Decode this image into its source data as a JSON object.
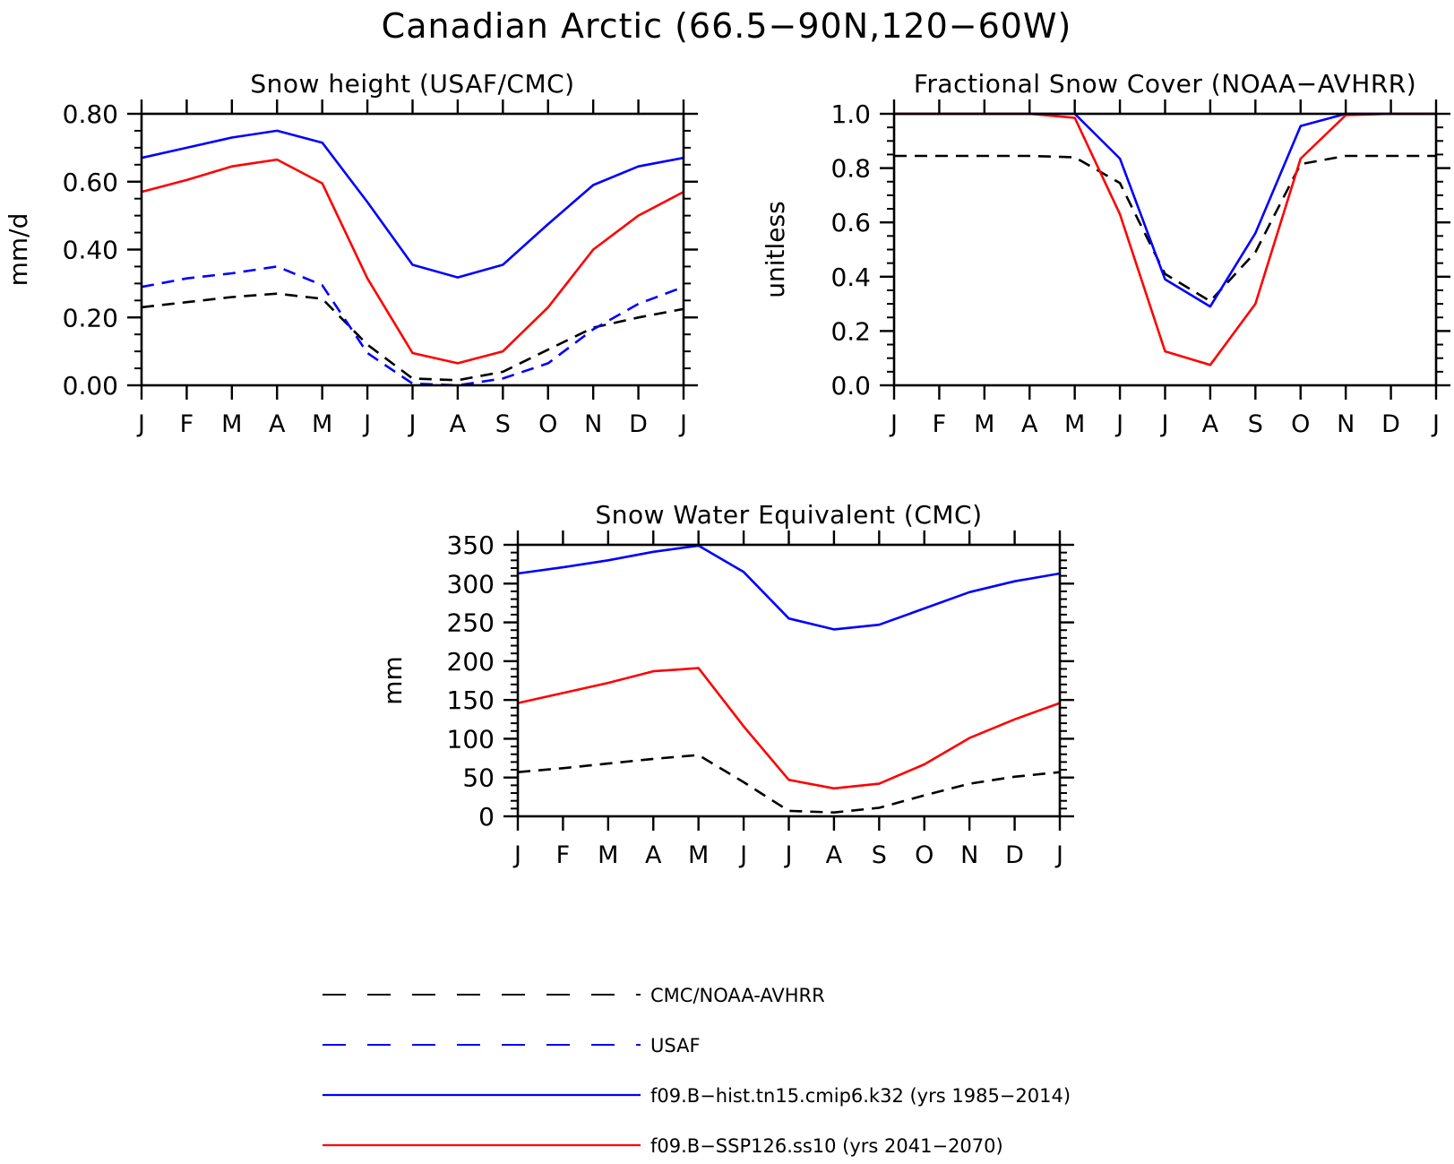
{
  "figure_title": "Canadian Arctic (66.5−90N,120−60W)",
  "months": [
    "J",
    "F",
    "M",
    "A",
    "M",
    "J",
    "J",
    "A",
    "S",
    "O",
    "N",
    "D",
    "J"
  ],
  "legend": [
    {
      "label": "CMC/NOAA-AVHRR",
      "color": "#000000",
      "dashed": true
    },
    {
      "label": "USAF",
      "color": "#0000ff",
      "dashed": true
    },
    {
      "label": "f09.B−hist.tn15.cmip6.k32 (yrs 1985−2014)",
      "color": "#0000ff",
      "dashed": false
    },
    {
      "label": "f09.B−SSP126.ss10 (yrs 2041−2070)",
      "color": "#ff0000",
      "dashed": false
    }
  ],
  "chart_data": [
    {
      "id": "snow-height",
      "type": "line",
      "title": "Snow height (USAF/CMC)",
      "ylabel": "mm/d",
      "ylim": [
        0,
        0.8
      ],
      "yticks": [
        "0.00",
        "0.20",
        "0.40",
        "0.60",
        "0.80"
      ],
      "x": [
        "J",
        "F",
        "M",
        "A",
        "M",
        "J",
        "J",
        "A",
        "S",
        "O",
        "N",
        "D",
        "J"
      ],
      "series": [
        {
          "name": "CMC/NOAA-AVHRR",
          "color": "#000000",
          "dashed": true,
          "values": [
            0.23,
            0.245,
            0.26,
            0.27,
            0.255,
            0.12,
            0.02,
            0.015,
            0.04,
            0.105,
            0.17,
            0.2,
            0.225
          ]
        },
        {
          "name": "USAF",
          "color": "#0000ff",
          "dashed": true,
          "values": [
            0.29,
            0.315,
            0.33,
            0.35,
            0.295,
            0.095,
            0.005,
            0.0,
            0.02,
            0.065,
            0.165,
            0.24,
            0.29
          ]
        },
        {
          "name": "f09.B−hist.tn15.cmip6.k32 (yrs 1985−2014)",
          "color": "#0000ff",
          "dashed": false,
          "values": [
            0.67,
            0.7,
            0.73,
            0.75,
            0.715,
            0.54,
            0.355,
            0.318,
            0.355,
            0.475,
            0.59,
            0.645,
            0.67
          ]
        },
        {
          "name": "f09.B−SSP126.ss10 (yrs 2041−2070)",
          "color": "#ff0000",
          "dashed": false,
          "values": [
            0.57,
            0.605,
            0.645,
            0.665,
            0.595,
            0.315,
            0.095,
            0.065,
            0.1,
            0.23,
            0.4,
            0.5,
            0.57
          ]
        }
      ]
    },
    {
      "id": "snow-cover",
      "type": "line",
      "title": "Fractional Snow Cover (NOAA−AVHRR)",
      "ylabel": "unitless",
      "ylim": [
        0,
        1.0
      ],
      "yticks": [
        "0.0",
        "0.2",
        "0.4",
        "0.6",
        "0.8",
        "1.0"
      ],
      "x": [
        "J",
        "F",
        "M",
        "A",
        "M",
        "J",
        "J",
        "A",
        "S",
        "O",
        "N",
        "D",
        "J"
      ],
      "series": [
        {
          "name": "CMC/NOAA-AVHRR",
          "color": "#000000",
          "dashed": true,
          "values": [
            0.845,
            0.845,
            0.845,
            0.845,
            0.84,
            0.745,
            0.41,
            0.31,
            0.49,
            0.815,
            0.845,
            0.845,
            0.845
          ]
        },
        {
          "name": "f09.B−hist.tn15.cmip6.k32 (yrs 1985−2014)",
          "color": "#0000ff",
          "dashed": false,
          "values": [
            1.0,
            1.0,
            1.0,
            1.0,
            1.0,
            0.835,
            0.39,
            0.29,
            0.56,
            0.955,
            1.0,
            1.0,
            1.0
          ]
        },
        {
          "name": "f09.B−SSP126.ss10 (yrs 2041−2070)",
          "color": "#ff0000",
          "dashed": false,
          "values": [
            1.0,
            1.0,
            1.0,
            1.0,
            0.985,
            0.63,
            0.125,
            0.075,
            0.3,
            0.835,
            0.995,
            1.0,
            1.0
          ]
        }
      ]
    },
    {
      "id": "swe",
      "type": "line",
      "title": "Snow Water Equivalent (CMC)",
      "ylabel": "mm",
      "ylim": [
        0,
        350
      ],
      "yticks": [
        "0",
        "50",
        "100",
        "150",
        "200",
        "250",
        "300",
        "350"
      ],
      "x": [
        "J",
        "F",
        "M",
        "A",
        "M",
        "J",
        "J",
        "A",
        "S",
        "O",
        "N",
        "D",
        "J"
      ],
      "series": [
        {
          "name": "CMC/NOAA-AVHRR",
          "color": "#000000",
          "dashed": true,
          "values": [
            57,
            62,
            68,
            74,
            79,
            44,
            7,
            5,
            11,
            27,
            42,
            51,
            57
          ]
        },
        {
          "name": "f09.B−hist.tn15.cmip6.k32 (yrs 1985−2014)",
          "color": "#0000ff",
          "dashed": false,
          "values": [
            313,
            321,
            330,
            341,
            349,
            315,
            255,
            241,
            247,
            268,
            289,
            303,
            313
          ]
        },
        {
          "name": "f09.B−SSP126.ss10 (yrs 2041−2070)",
          "color": "#ff0000",
          "dashed": false,
          "values": [
            146,
            159,
            172,
            187,
            191,
            116,
            47,
            36,
            42,
            67,
            101,
            125,
            146
          ]
        }
      ]
    }
  ]
}
